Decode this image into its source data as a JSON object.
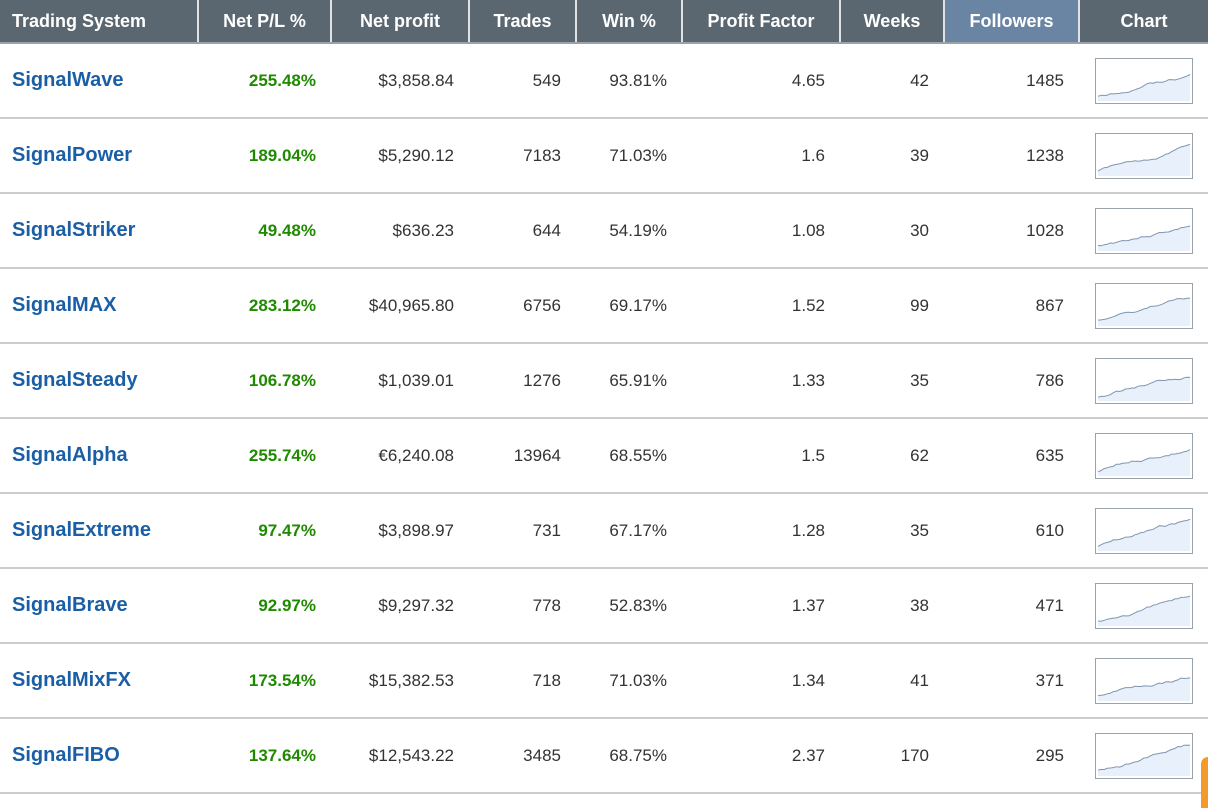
{
  "columns": [
    "Trading System",
    "Net P/L %",
    "Net profit",
    "Trades",
    "Win %",
    "Profit Factor",
    "Weeks",
    "Followers",
    "Chart"
  ],
  "sorted_column": "Followers",
  "colors": {
    "header_bg": "#5b6770",
    "sorted_header_bg": "#6a85a3",
    "link": "#1a5fa6",
    "positive": "#1f8a00",
    "spark_line": "#7f96b0",
    "spark_fill": "#e8f1fb"
  },
  "rows": [
    {
      "name": "SignalWave",
      "pnl": "255.48%",
      "profit": "$3,858.84",
      "trades": "549",
      "win": "93.81%",
      "pf": "4.65",
      "weeks": "42",
      "followers": "1485",
      "chart_icon": "equity-curve-sparkline"
    },
    {
      "name": "SignalPower",
      "pnl": "189.04%",
      "profit": "$5,290.12",
      "trades": "7183",
      "win": "71.03%",
      "pf": "1.6",
      "weeks": "39",
      "followers": "1238",
      "chart_icon": "equity-curve-sparkline"
    },
    {
      "name": "SignalStriker",
      "pnl": "49.48%",
      "profit": "$636.23",
      "trades": "644",
      "win": "54.19%",
      "pf": "1.08",
      "weeks": "30",
      "followers": "1028",
      "chart_icon": "equity-curve-sparkline"
    },
    {
      "name": "SignalMAX",
      "pnl": "283.12%",
      "profit": "$40,965.80",
      "trades": "6756",
      "win": "69.17%",
      "pf": "1.52",
      "weeks": "99",
      "followers": "867",
      "chart_icon": "equity-curve-sparkline"
    },
    {
      "name": "SignalSteady",
      "pnl": "106.78%",
      "profit": "$1,039.01",
      "trades": "1276",
      "win": "65.91%",
      "pf": "1.33",
      "weeks": "35",
      "followers": "786",
      "chart_icon": "equity-curve-sparkline"
    },
    {
      "name": "SignalAlpha",
      "pnl": "255.74%",
      "profit": "€6,240.08",
      "trades": "13964",
      "win": "68.55%",
      "pf": "1.5",
      "weeks": "62",
      "followers": "635",
      "chart_icon": "equity-curve-sparkline"
    },
    {
      "name": "SignalExtreme",
      "pnl": "97.47%",
      "profit": "$3,898.97",
      "trades": "731",
      "win": "67.17%",
      "pf": "1.28",
      "weeks": "35",
      "followers": "610",
      "chart_icon": "equity-curve-sparkline"
    },
    {
      "name": "SignalBrave",
      "pnl": "92.97%",
      "profit": "$9,297.32",
      "trades": "778",
      "win": "52.83%",
      "pf": "1.37",
      "weeks": "38",
      "followers": "471",
      "chart_icon": "equity-curve-sparkline"
    },
    {
      "name": "SignalMixFX",
      "pnl": "173.54%",
      "profit": "$15,382.53",
      "trades": "718",
      "win": "71.03%",
      "pf": "1.34",
      "weeks": "41",
      "followers": "371",
      "chart_icon": "equity-curve-sparkline"
    },
    {
      "name": "SignalFIBO",
      "pnl": "137.64%",
      "profit": "$12,543.22",
      "trades": "3485",
      "win": "68.75%",
      "pf": "2.37",
      "weeks": "170",
      "followers": "295",
      "chart_icon": "equity-curve-sparkline"
    }
  ]
}
